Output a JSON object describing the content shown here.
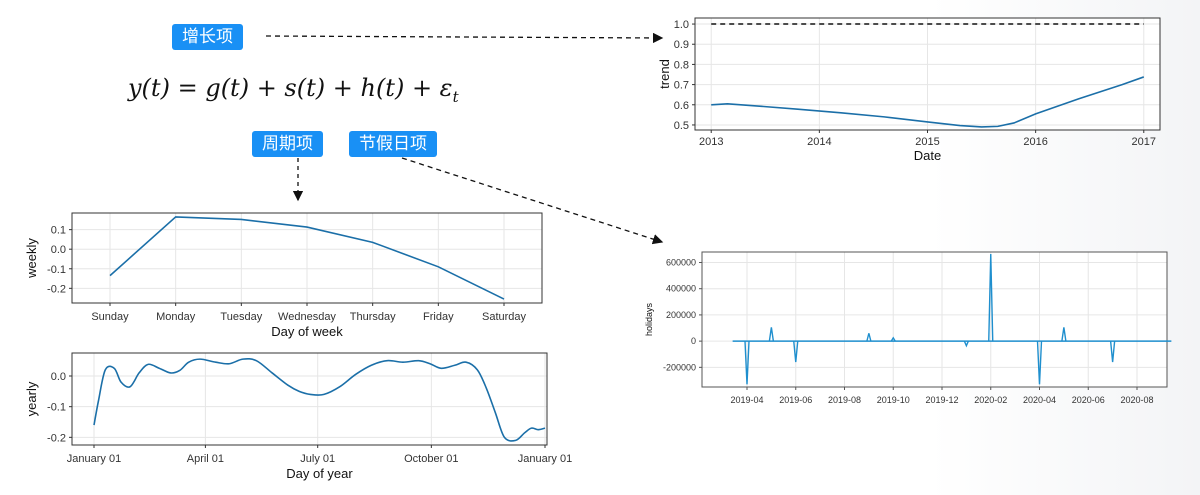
{
  "tags": {
    "growth": "增长项",
    "periodic": "周期项",
    "holiday": "节假日项"
  },
  "formula": {
    "lhs": "y(t)",
    "rhs": "g(t) + s(t) + h(t) + ε",
    "subscript": "t"
  },
  "colors": {
    "line": "#1b6fa8",
    "holiday_line": "#1f8fce",
    "tag_bg": "#1990f5",
    "dashed": "#111111",
    "grid": "#e6e6e6"
  },
  "chart_data": [
    {
      "id": "trend",
      "type": "line",
      "xlabel": "Date",
      "ylabel": "trend",
      "x_ticks": [
        "2013",
        "2014",
        "2015",
        "2016",
        "2017"
      ],
      "y_ticks": [
        "0.5",
        "0.6",
        "0.7",
        "0.8",
        "0.9",
        "1.0"
      ],
      "xlim": [
        2012.85,
        2017.15
      ],
      "ylim": [
        0.475,
        1.03
      ],
      "grid": true,
      "x": [
        2013.0,
        2013.15,
        2013.4,
        2013.8,
        2014.2,
        2014.6,
        2015.0,
        2015.3,
        2015.5,
        2015.65,
        2015.8,
        2016.0,
        2016.4,
        2016.8,
        2017.0
      ],
      "y": [
        0.6,
        0.605,
        0.595,
        0.578,
        0.56,
        0.54,
        0.515,
        0.497,
        0.49,
        0.493,
        0.51,
        0.555,
        0.63,
        0.7,
        0.738
      ],
      "reference_line": {
        "y": 1.0,
        "style": "dashed"
      }
    },
    {
      "id": "weekly",
      "type": "line",
      "xlabel": "Day of week",
      "ylabel": "weekly",
      "categories": [
        "Sunday",
        "Monday",
        "Tuesday",
        "Wednesday",
        "Thursday",
        "Friday",
        "Saturday"
      ],
      "values": [
        -0.135,
        0.165,
        0.152,
        0.113,
        0.035,
        -0.09,
        -0.255
      ],
      "y_ticks": [
        "-0.2",
        "-0.1",
        "0.0",
        "0.1"
      ],
      "ylim": [
        -0.275,
        0.185
      ],
      "grid": true
    },
    {
      "id": "yearly",
      "type": "line",
      "xlabel": "Day of year",
      "ylabel": "yearly",
      "x_ticks": [
        "January 01",
        "April 01",
        "July 01",
        "October 01",
        "January 01"
      ],
      "y_ticks": [
        "-0.2",
        "-0.1",
        "0.0"
      ],
      "xlim": [
        0,
        1
      ],
      "ylim": [
        -0.225,
        0.075
      ],
      "grid": true,
      "x": [
        0,
        0.01,
        0.025,
        0.045,
        0.06,
        0.08,
        0.1,
        0.12,
        0.145,
        0.17,
        0.19,
        0.21,
        0.235,
        0.27,
        0.3,
        0.33,
        0.36,
        0.395,
        0.43,
        0.455,
        0.48,
        0.51,
        0.545,
        0.58,
        0.615,
        0.65,
        0.685,
        0.72,
        0.745,
        0.77,
        0.8,
        0.825,
        0.85,
        0.87,
        0.89,
        0.91,
        0.935,
        0.955,
        0.97,
        0.985,
        1.0
      ],
      "y": [
        -0.16,
        -0.08,
        0.02,
        0.025,
        -0.02,
        -0.035,
        0.01,
        0.038,
        0.025,
        0.01,
        0.018,
        0.045,
        0.055,
        0.045,
        0.04,
        0.055,
        0.05,
        0.01,
        -0.03,
        -0.05,
        -0.06,
        -0.06,
        -0.035,
        0.005,
        0.035,
        0.05,
        0.045,
        0.05,
        0.04,
        0.025,
        0.035,
        0.045,
        0.02,
        -0.04,
        -0.12,
        -0.2,
        -0.21,
        -0.185,
        -0.17,
        -0.175,
        -0.17
      ]
    },
    {
      "id": "holidays",
      "type": "line",
      "xlabel": "",
      "ylabel": "holidays",
      "x_ticks": [
        "2019-04",
        "2019-06",
        "2019-08",
        "2019-10",
        "2019-12",
        "2020-02",
        "2020-04",
        "2020-06",
        "2020-08"
      ],
      "y_ticks": [
        "-200000",
        "0",
        "200000",
        "400000",
        "600000"
      ],
      "ylim": [
        -350000,
        680000
      ],
      "grid": true,
      "baseline_range": [
        "2019-03",
        "2020-09"
      ],
      "spikes": [
        {
          "at": "2019-04",
          "value": -330000
        },
        {
          "at": "2019-05",
          "value": 105000
        },
        {
          "at": "2019-06",
          "value": -160000
        },
        {
          "at": "2019-09",
          "value": 60000
        },
        {
          "at": "2019-10",
          "value": 25000
        },
        {
          "at": "2020-01",
          "value": -35000
        },
        {
          "at": "2020-02",
          "value": 665000
        },
        {
          "at": "2020-04",
          "value": -330000
        },
        {
          "at": "2020-05",
          "value": 105000
        },
        {
          "at": "2020-07",
          "value": -160000
        }
      ]
    }
  ]
}
